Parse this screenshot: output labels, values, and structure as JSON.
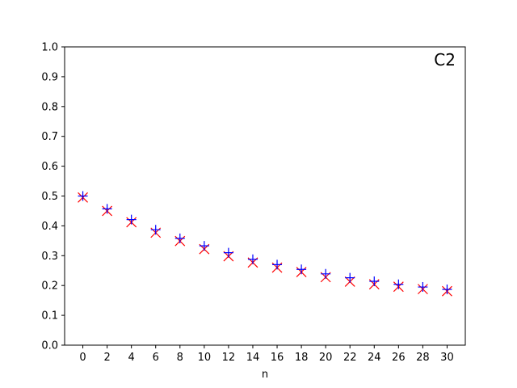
{
  "chart_data": {
    "type": "scatter",
    "title": "",
    "xlabel": "n",
    "ylabel": "",
    "annotation": "C2",
    "xlim": [
      -1.5,
      31.5
    ],
    "ylim": [
      0.0,
      1.0
    ],
    "xticks": [
      0,
      2,
      4,
      6,
      8,
      10,
      12,
      14,
      16,
      18,
      20,
      22,
      24,
      26,
      28,
      30
    ],
    "yticks": [
      "0.0",
      "0.1",
      "0.2",
      "0.3",
      "0.4",
      "0.5",
      "0.6",
      "0.7",
      "0.8",
      "0.9",
      "1.0"
    ],
    "grid": false,
    "x": [
      0,
      2,
      4,
      6,
      8,
      10,
      12,
      14,
      16,
      18,
      20,
      22,
      24,
      26,
      28,
      30
    ],
    "series": [
      {
        "marker": "plus",
        "color": "#0000ff",
        "values": [
          0.5,
          0.457,
          0.421,
          0.387,
          0.358,
          0.333,
          0.31,
          0.288,
          0.27,
          0.254,
          0.239,
          0.226,
          0.214,
          0.204,
          0.195,
          0.187
        ]
      },
      {
        "marker": "x",
        "color": "#ff0000",
        "values": [
          0.495,
          0.45,
          0.412,
          0.377,
          0.349,
          0.322,
          0.298,
          0.277,
          0.26,
          0.245,
          0.228,
          0.213,
          0.204,
          0.196,
          0.188,
          0.181
        ]
      }
    ]
  }
}
